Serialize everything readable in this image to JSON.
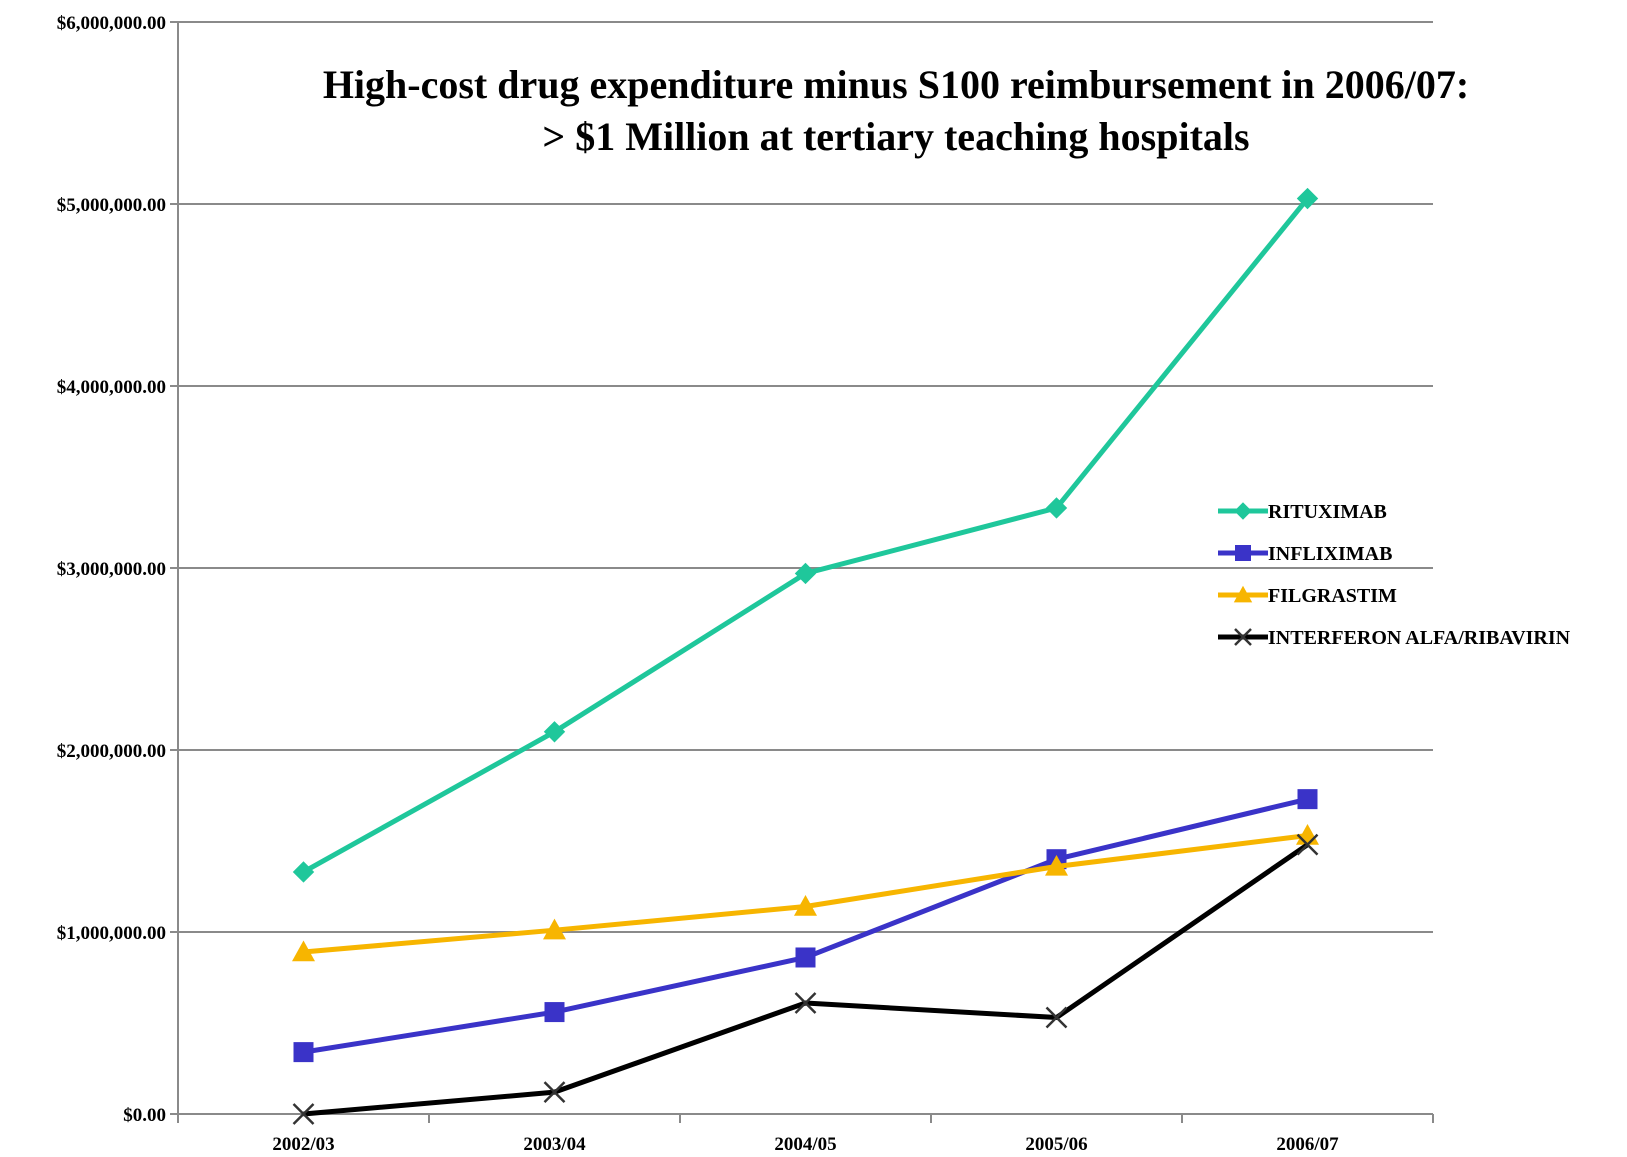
{
  "chart_data": {
    "type": "line",
    "title": [
      "High-cost drug expenditure minus S100 reimbursement  in 2006/07:",
      "> $1 Million at tertiary teaching hospitals"
    ],
    "categories": [
      "2002/03",
      "2003/04",
      "2004/05",
      "2005/06",
      "2006/07"
    ],
    "y_ticks": [
      "$0.00",
      "$1,000,000.00",
      "$2,000,000.00",
      "$3,000,000.00",
      "$4,000,000.00",
      "$5,000,000.00",
      "$6,000,000.00"
    ],
    "ylim": [
      0,
      6000000
    ],
    "grid": true,
    "legend_position": "right",
    "series": [
      {
        "name": "RITUXIMAB",
        "color": "#1fc79b",
        "marker": "diamond",
        "values": [
          1330000,
          2100000,
          2970000,
          3330000,
          5030000
        ]
      },
      {
        "name": "INFLIXIMAB",
        "color": "#3a33c8",
        "marker": "square",
        "values": [
          340000,
          560000,
          860000,
          1400000,
          1730000
        ]
      },
      {
        "name": "FILGRASTIM",
        "color": "#f7b500",
        "marker": "triangle",
        "values": [
          890000,
          1010000,
          1140000,
          1360000,
          1530000
        ]
      },
      {
        "name": "INTERFERON ALFA/RIBAVIRIN",
        "color": "#000000",
        "marker": "x",
        "values": [
          0,
          120000,
          610000,
          530000,
          1480000
        ]
      }
    ]
  }
}
